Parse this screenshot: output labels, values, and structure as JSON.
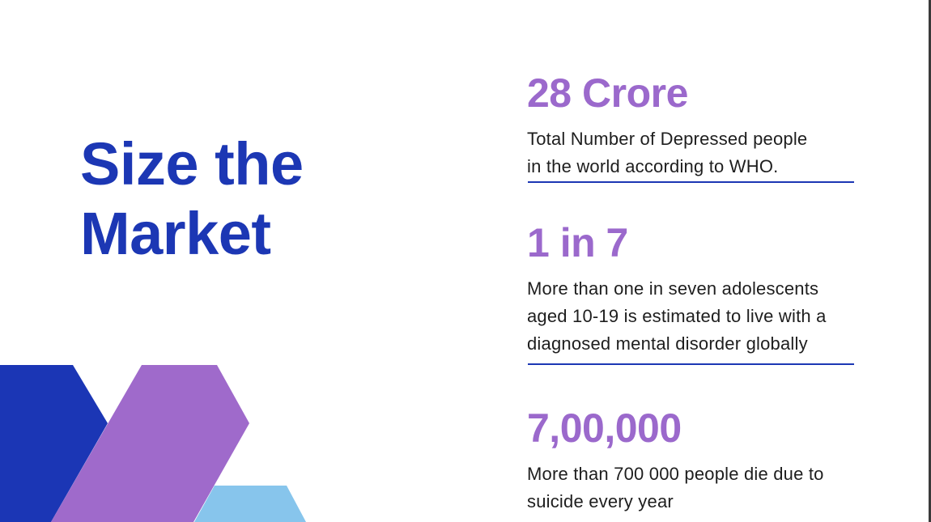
{
  "slide": {
    "title_lines": [
      "Size the",
      "Market"
    ],
    "colors": {
      "title": "#1c37b4",
      "stat_value": "#9b69cc",
      "rule": "#1c37b4",
      "shape_dark_blue": "#1b36b5",
      "shape_purple": "#9f6acb",
      "shape_light_blue": "#87c5ec"
    },
    "stats": [
      {
        "value": "28 Crore",
        "description_lines": [
          "Total Number of Depressed people",
          "in the world according to WHO."
        ]
      },
      {
        "value": "1 in 7",
        "description_lines": [
          "More than one in seven adolescents",
          "aged 10-19 is estimated to live with a",
          "diagnosed mental disorder globally"
        ]
      },
      {
        "value": "7,00,000",
        "description_lines": [
          "More than 700 000 people die due to",
          "suicide every year"
        ]
      }
    ]
  }
}
